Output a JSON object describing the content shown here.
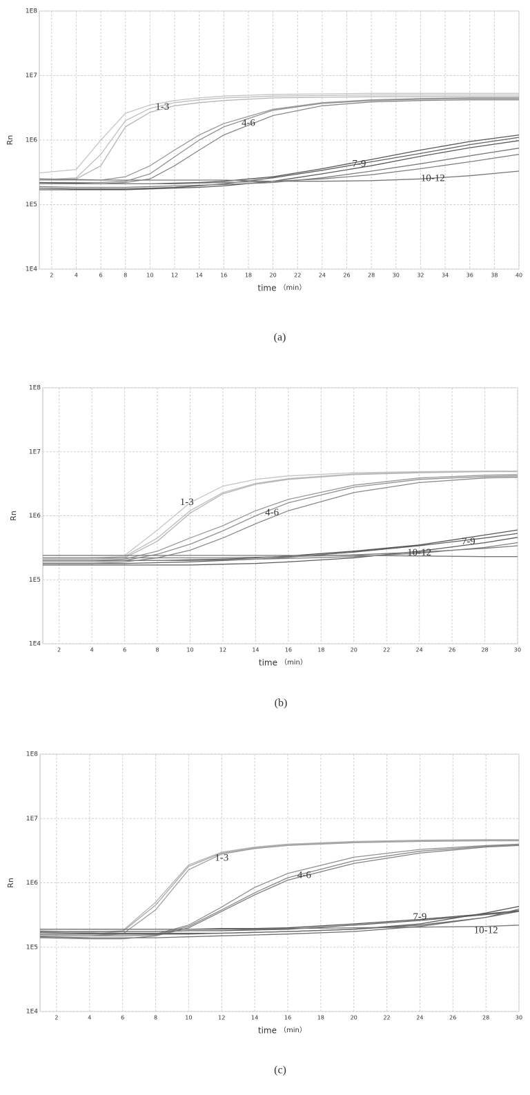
{
  "chart_data": [
    {
      "type": "line",
      "caption": "(a)",
      "xlabel": "time",
      "xlabel_unit": "（min）",
      "ylabel": "Rn",
      "log_scale": true,
      "grid": true,
      "xlim": [
        1,
        40
      ],
      "xticks": [
        2,
        4,
        6,
        8,
        10,
        12,
        14,
        16,
        18,
        20,
        22,
        24,
        26,
        28,
        30,
        32,
        34,
        36,
        38,
        40
      ],
      "ylim": [
        10000,
        100000000
      ],
      "yticks": [
        {
          "value": 10000,
          "label": "1E4"
        },
        {
          "value": 100000,
          "label": "1E5"
        },
        {
          "value": 1000000,
          "label": "1E6"
        },
        {
          "value": 10000000,
          "label": "1E7"
        },
        {
          "value": 100000000,
          "label": "1E8"
        }
      ],
      "x": [
        1,
        4,
        6,
        8,
        10,
        12,
        14,
        16,
        20,
        24,
        28,
        32,
        36,
        40
      ],
      "series": [
        {
          "color": "#c4c4c4",
          "values": [
            310000.0,
            350000.0,
            1000000.0,
            2600000.0,
            3500000.0,
            4100000.0,
            4500000.0,
            4800000.0,
            5100000.0,
            5200000.0,
            5300000.0,
            5300000.0,
            5300000.0,
            5300000.0
          ]
        },
        {
          "color": "#bdbdbd",
          "values": [
            240000.0,
            260000.0,
            600000.0,
            2000000.0,
            3100000.0,
            3800000.0,
            4200000.0,
            4500000.0,
            4800000.0,
            4900000.0,
            5000000.0,
            5000000.0,
            5000000.0,
            5000000.0
          ]
        },
        {
          "color": "#b5b5b5",
          "values": [
            240000.0,
            250000.0,
            400000.0,
            1600000.0,
            2700000.0,
            3400000.0,
            3800000.0,
            4100000.0,
            4500000.0,
            4600000.0,
            4700000.0,
            4700000.0,
            4700000.0,
            4700000.0
          ]
        },
        {
          "color": "#999999",
          "values": [
            240000.0,
            240000.0,
            240000.0,
            270000.0,
            400000.0,
            700000.0,
            1200000.0,
            1800000.0,
            3000000.0,
            3800000.0,
            4200000.0,
            4400000.0,
            4500000.0,
            4500000.0
          ]
        },
        {
          "color": "#909090",
          "values": [
            220000.0,
            220000.0,
            220000.0,
            230000.0,
            300000.0,
            550000.0,
            1000000.0,
            1600000.0,
            2900000.0,
            3700000.0,
            4100000.0,
            4300000.0,
            4400000.0,
            4400000.0
          ]
        },
        {
          "color": "#888888",
          "values": [
            210000.0,
            210000.0,
            210000.0,
            220000.0,
            250000.0,
            400000.0,
            700000.0,
            1200000.0,
            2400000.0,
            3400000.0,
            3900000.0,
            4100000.0,
            4200000.0,
            4200000.0
          ]
        },
        {
          "color": "#555555",
          "values": [
            220000.0,
            215000.0,
            210000.0,
            210000.0,
            210000.0,
            215000.0,
            220000.0,
            230000.0,
            270000.0,
            360000.0,
            500000.0,
            700000.0,
            950000.0,
            1200000.0
          ]
        },
        {
          "color": "#606060",
          "values": [
            180000.0,
            175000.0,
            175000.0,
            175000.0,
            180000.0,
            185000.0,
            195000.0,
            210000.0,
            260000.0,
            340000.0,
            460000.0,
            620000.0,
            850000.0,
            1100000.0
          ]
        },
        {
          "color": "#5a5a5a",
          "values": [
            170000.0,
            170000.0,
            170000.0,
            170000.0,
            175000.0,
            180000.0,
            185000.0,
            195000.0,
            230000.0,
            300000.0,
            400000.0,
            560000.0,
            760000.0,
            980000.0
          ]
        },
        {
          "color": "#777777",
          "values": [
            250000.0,
            245000.0,
            240000.0,
            240000.0,
            240000.0,
            240000.0,
            240000.0,
            240000.0,
            230000.0,
            230000.0,
            235000.0,
            250000.0,
            280000.0,
            330000.0
          ]
        },
        {
          "color": "#7a7a7a",
          "values": [
            190000.0,
            185000.0,
            185000.0,
            185000.0,
            190000.0,
            195000.0,
            200000.0,
            205000.0,
            220000.0,
            260000.0,
            330000.0,
            430000.0,
            570000.0,
            750000.0
          ]
        },
        {
          "color": "#808080",
          "values": [
            210000.0,
            210000.0,
            210000.0,
            210000.0,
            210000.0,
            210000.0,
            215000.0,
            220000.0,
            230000.0,
            250000.0,
            290000.0,
            360000.0,
            460000.0,
            600000.0
          ]
        }
      ],
      "annotations": [
        {
          "text": "1-3",
          "x": 11,
          "y": 3200000.0
        },
        {
          "text": "4-6",
          "x": 18,
          "y": 1800000.0
        },
        {
          "text": "7-9",
          "x": 27,
          "y": 420000.0
        },
        {
          "text": "10-12",
          "x": 33,
          "y": 250000.0
        }
      ]
    },
    {
      "type": "line",
      "caption": "(b)",
      "xlabel": "time",
      "xlabel_unit": "（min）",
      "ylabel": "Rn",
      "log_scale": true,
      "grid": true,
      "xlim": [
        1,
        30
      ],
      "xticks": [
        2,
        4,
        6,
        8,
        10,
        12,
        14,
        16,
        18,
        20,
        22,
        24,
        26,
        28,
        30
      ],
      "ylim": [
        10000,
        100000000
      ],
      "yticks": [
        {
          "value": 10000,
          "label": "1E4"
        },
        {
          "value": 100000,
          "label": "1E5"
        },
        {
          "value": 1000000,
          "label": "1E6"
        },
        {
          "value": 10000000,
          "label": "1E7"
        },
        {
          "value": 100000000,
          "label": "1E8"
        }
      ],
      "x": [
        1,
        4,
        6,
        8,
        10,
        12,
        14,
        16,
        20,
        24,
        28,
        30
      ],
      "series": [
        {
          "color": "#c4c4c4",
          "values": [
            240000.0,
            240000.0,
            240000.0,
            600000.0,
            1600000.0,
            2900000.0,
            3700000.0,
            4200000.0,
            4700000.0,
            4900000.0,
            5000000.0,
            5000000.0
          ]
        },
        {
          "color": "#bdbdbd",
          "values": [
            220000.0,
            220000.0,
            230000.0,
            450000.0,
            1200000.0,
            2300000.0,
            3200000.0,
            3800000.0,
            4500000.0,
            4800000.0,
            4900000.0,
            4900000.0
          ]
        },
        {
          "color": "#b5b5b5",
          "values": [
            210000.0,
            210000.0,
            220000.0,
            400000.0,
            1100000.0,
            2200000.0,
            3100000.0,
            3700000.0,
            4400000.0,
            4700000.0,
            4900000.0,
            4900000.0
          ]
        },
        {
          "color": "#999999",
          "values": [
            200000.0,
            200000.0,
            210000.0,
            280000.0,
            450000.0,
            700000.0,
            1200000.0,
            1800000.0,
            3000000.0,
            3900000.0,
            4300000.0,
            4400000.0
          ]
        },
        {
          "color": "#909090",
          "values": [
            190000.0,
            190000.0,
            200000.0,
            250000.0,
            360000.0,
            580000.0,
            1000000.0,
            1600000.0,
            2800000.0,
            3700000.0,
            4100000.0,
            4200000.0
          ]
        },
        {
          "color": "#888888",
          "values": [
            180000.0,
            180000.0,
            190000.0,
            220000.0,
            290000.0,
            450000.0,
            750000.0,
            1200000.0,
            2300000.0,
            3300000.0,
            3900000.0,
            4000000.0
          ]
        },
        {
          "color": "#555555",
          "values": [
            200000.0,
            200000.0,
            200000.0,
            200000.0,
            205000.0,
            210000.0,
            220000.0,
            235000.0,
            280000.0,
            350000.0,
            500000.0,
            600000.0
          ]
        },
        {
          "color": "#606060",
          "values": [
            180000.0,
            180000.0,
            180000.0,
            185000.0,
            190000.0,
            200000.0,
            210000.0,
            225000.0,
            270000.0,
            340000.0,
            450000.0,
            530000.0
          ]
        },
        {
          "color": "#5a5a5a",
          "values": [
            170000.0,
            170000.0,
            170000.0,
            170000.0,
            170000.0,
            175000.0,
            180000.0,
            190000.0,
            220000.0,
            280000.0,
            380000.0,
            460000.0
          ]
        },
        {
          "color": "#777777",
          "values": [
            240000.0,
            240000.0,
            240000.0,
            240000.0,
            240000.0,
            240000.0,
            240000.0,
            240000.0,
            240000.0,
            235000.0,
            230000.0,
            230000.0
          ]
        },
        {
          "color": "#7a7a7a",
          "values": [
            220000.0,
            220000.0,
            220000.0,
            220000.0,
            220000.0,
            220000.0,
            225000.0,
            230000.0,
            245000.0,
            270000.0,
            310000.0,
            340000.0
          ]
        },
        {
          "color": "#808080",
          "values": [
            200000.0,
            200000.0,
            200000.0,
            200000.0,
            200000.0,
            205000.0,
            210000.0,
            215000.0,
            230000.0,
            260000.0,
            320000.0,
            380000.0
          ]
        }
      ],
      "annotations": [
        {
          "text": "1-3",
          "x": 9.8,
          "y": 1600000.0
        },
        {
          "text": "4-6",
          "x": 15,
          "y": 1100000.0
        },
        {
          "text": "7-9",
          "x": 27,
          "y": 390000.0
        },
        {
          "text": "10-12",
          "x": 24,
          "y": 260000.0
        }
      ]
    },
    {
      "type": "line",
      "caption": "(c)",
      "xlabel": "time",
      "xlabel_unit": "（min）",
      "ylabel": "Rn",
      "log_scale": true,
      "grid": true,
      "xlim": [
        1,
        30
      ],
      "xticks": [
        2,
        4,
        6,
        8,
        10,
        12,
        14,
        16,
        18,
        20,
        22,
        24,
        26,
        28,
        30
      ],
      "ylim": [
        10000,
        100000000
      ],
      "yticks": [
        {
          "value": 10000,
          "label": "1E4"
        },
        {
          "value": 100000,
          "label": "1E5"
        },
        {
          "value": 1000000,
          "label": "1E6"
        },
        {
          "value": 10000000,
          "label": "1E7"
        },
        {
          "value": 100000000,
          "label": "1E8"
        }
      ],
      "x": [
        1,
        4,
        6,
        8,
        10,
        12,
        14,
        16,
        20,
        24,
        28,
        30
      ],
      "series": [
        {
          "color": "#b5b5b5",
          "values": [
            180000.0,
            170000.0,
            180000.0,
            500000.0,
            1900000.0,
            3000000.0,
            3600000.0,
            4000000.0,
            4400000.0,
            4600000.0,
            4700000.0,
            4700000.0
          ]
        },
        {
          "color": "#a8a8a8",
          "values": [
            160000.0,
            160000.0,
            175000.0,
            450000.0,
            1800000.0,
            2900000.0,
            3500000.0,
            3900000.0,
            4300000.0,
            4500000.0,
            4600000.0,
            4600000.0
          ]
        },
        {
          "color": "#a0a0a0",
          "values": [
            150000.0,
            150000.0,
            160000.0,
            380000.0,
            1600000.0,
            2800000.0,
            3400000.0,
            3800000.0,
            4200000.0,
            4400000.0,
            4500000.0,
            4500000.0
          ]
        },
        {
          "color": "#909090",
          "values": [
            160000.0,
            160000.0,
            160000.0,
            160000.0,
            220000.0,
            420000.0,
            850000.0,
            1400000.0,
            2500000.0,
            3300000.0,
            3800000.0,
            4000000.0
          ]
        },
        {
          "color": "#888888",
          "values": [
            150000.0,
            150000.0,
            150000.0,
            155000.0,
            210000.0,
            380000.0,
            700000.0,
            1200000.0,
            2200000.0,
            3100000.0,
            3700000.0,
            3900000.0
          ]
        },
        {
          "color": "#808080",
          "values": [
            140000.0,
            135000.0,
            135000.0,
            150000.0,
            200000.0,
            360000.0,
            650000.0,
            1100000.0,
            2000000.0,
            2900000.0,
            3600000.0,
            3800000.0
          ]
        },
        {
          "color": "#555555",
          "values": [
            190000.0,
            190000.0,
            190000.0,
            190000.0,
            190000.0,
            195000.0,
            195000.0,
            200000.0,
            230000.0,
            270000.0,
            330000.0,
            370000.0
          ]
        },
        {
          "color": "#606060",
          "values": [
            175000.0,
            175000.0,
            175000.0,
            175000.0,
            180000.0,
            180000.0,
            185000.0,
            190000.0,
            220000.0,
            260000.0,
            320000.0,
            360000.0
          ]
        },
        {
          "color": "#5a5a5a",
          "values": [
            160000.0,
            160000.0,
            160000.0,
            160000.0,
            160000.0,
            165000.0,
            170000.0,
            175000.0,
            190000.0,
            230000.0,
            340000.0,
            430000.0
          ]
        },
        {
          "color": "#777777",
          "values": [
            190000.0,
            190000.0,
            190000.0,
            190000.0,
            190000.0,
            190000.0,
            190000.0,
            195000.0,
            200000.0,
            205000.0,
            210000.0,
            220000.0
          ]
        },
        {
          "color": "#6a6a6a",
          "values": [
            170000.0,
            165000.0,
            165000.0,
            165000.0,
            165000.0,
            165000.0,
            170000.0,
            175000.0,
            190000.0,
            220000.0,
            290000.0,
            360000.0
          ]
        },
        {
          "color": "#707070",
          "values": [
            145000.0,
            140000.0,
            140000.0,
            140000.0,
            145000.0,
            150000.0,
            155000.0,
            160000.0,
            175000.0,
            210000.0,
            290000.0,
            390000.0
          ]
        }
      ],
      "annotations": [
        {
          "text": "1-3",
          "x": 12,
          "y": 2400000.0
        },
        {
          "text": "4-6",
          "x": 17,
          "y": 1300000.0
        },
        {
          "text": "7-9",
          "x": 24,
          "y": 290000.0
        },
        {
          "text": "10-12",
          "x": 28,
          "y": 180000.0
        }
      ]
    }
  ]
}
